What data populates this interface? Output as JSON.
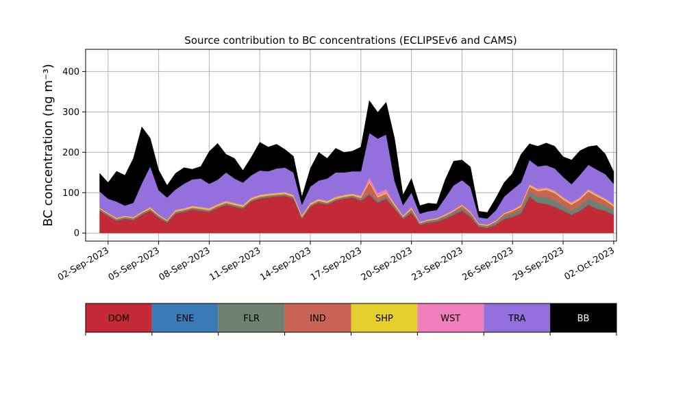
{
  "chart_data": {
    "type": "area",
    "stacked": true,
    "title": "Source contribution to BC concentrations (ECLIPSEv6 and CAMS)",
    "ylabel": "BC concentration (ng m⁻³)",
    "xlabel": "",
    "ylim": [
      -20,
      455
    ],
    "yticks": [
      0,
      100,
      200,
      300,
      400
    ],
    "xlim": [
      "2023-08-31T16:00",
      "2023-10-02T04:00"
    ],
    "xticks": [
      "02-Sep-2023",
      "05-Sep-2023",
      "08-Sep-2023",
      "11-Sep-2023",
      "14-Sep-2023",
      "17-Sep-2023",
      "20-Sep-2023",
      "23-Sep-2023",
      "26-Sep-2023",
      "29-Sep-2023",
      "02-Oct-2023"
    ],
    "grid": true,
    "legend_placement": "below",
    "x": [
      "2023-09-01T12:00",
      "2023-09-02T00:00",
      "2023-09-02T12:00",
      "2023-09-03T00:00",
      "2023-09-03T12:00",
      "2023-09-04T00:00",
      "2023-09-04T12:00",
      "2023-09-05T00:00",
      "2023-09-05T12:00",
      "2023-09-06T00:00",
      "2023-09-06T12:00",
      "2023-09-07T00:00",
      "2023-09-07T12:00",
      "2023-09-08T00:00",
      "2023-09-08T12:00",
      "2023-09-09T00:00",
      "2023-09-09T12:00",
      "2023-09-10T00:00",
      "2023-09-10T12:00",
      "2023-09-11T00:00",
      "2023-09-11T12:00",
      "2023-09-12T00:00",
      "2023-09-12T12:00",
      "2023-09-13T00:00",
      "2023-09-13T12:00",
      "2023-09-14T00:00",
      "2023-09-14T12:00",
      "2023-09-15T00:00",
      "2023-09-15T12:00",
      "2023-09-16T00:00",
      "2023-09-16T12:00",
      "2023-09-17T00:00",
      "2023-09-17T12:00",
      "2023-09-18T00:00",
      "2023-09-18T12:00",
      "2023-09-19T00:00",
      "2023-09-19T12:00",
      "2023-09-20T00:00",
      "2023-09-20T12:00",
      "2023-09-21T00:00",
      "2023-09-21T12:00",
      "2023-09-22T00:00",
      "2023-09-22T12:00",
      "2023-09-23T00:00",
      "2023-09-23T12:00",
      "2023-09-24T00:00",
      "2023-09-24T12:00",
      "2023-09-25T00:00",
      "2023-09-25T12:00",
      "2023-09-26T00:00",
      "2023-09-26T12:00",
      "2023-09-27T00:00",
      "2023-09-27T12:00",
      "2023-09-28T00:00",
      "2023-09-28T12:00",
      "2023-09-29T00:00",
      "2023-09-29T12:00",
      "2023-09-30T00:00",
      "2023-09-30T12:00",
      "2023-10-01T00:00",
      "2023-10-01T12:00",
      "2023-10-02T00:00"
    ],
    "series": [
      {
        "name": "DOM",
        "color": "#c42a35",
        "values": [
          55,
          42,
          30,
          35,
          32,
          45,
          55,
          38,
          25,
          48,
          52,
          58,
          55,
          52,
          62,
          70,
          65,
          60,
          78,
          85,
          88,
          90,
          92,
          85,
          35,
          65,
          75,
          70,
          80,
          85,
          88,
          80,
          95,
          75,
          85,
          60,
          35,
          50,
          20,
          25,
          28,
          35,
          45,
          55,
          40,
          15,
          12,
          20,
          35,
          40,
          48,
          90,
          75,
          72,
          65,
          55,
          45,
          55,
          70,
          60,
          55,
          45
        ]
      },
      {
        "name": "ENE",
        "color": "#3a7ab5",
        "values": [
          1,
          1,
          1,
          1,
          1,
          1,
          1,
          1,
          1,
          1,
          1,
          1,
          1,
          1,
          1,
          1,
          1,
          1,
          1,
          1,
          1,
          1,
          1,
          1,
          1,
          1,
          1,
          1,
          1,
          1,
          1,
          1,
          1,
          1,
          1,
          1,
          1,
          1,
          1,
          1,
          1,
          1,
          1,
          1,
          1,
          1,
          1,
          1,
          1,
          1,
          1,
          1,
          1,
          1,
          1,
          1,
          1,
          1,
          1,
          1,
          1,
          1
        ]
      },
      {
        "name": "FLR",
        "color": "#6e8070",
        "values": [
          2,
          2,
          2,
          2,
          2,
          2,
          2,
          2,
          2,
          2,
          2,
          2,
          2,
          2,
          2,
          2,
          2,
          2,
          2,
          2,
          2,
          2,
          2,
          2,
          2,
          2,
          2,
          2,
          2,
          2,
          2,
          3,
          4,
          4,
          4,
          3,
          2,
          4,
          2,
          3,
          3,
          4,
          5,
          6,
          5,
          3,
          3,
          4,
          6,
          7,
          8,
          12,
          14,
          16,
          15,
          12,
          10,
          12,
          14,
          14,
          12,
          10
        ]
      },
      {
        "name": "IND",
        "color": "#c86356",
        "values": [
          2,
          2,
          2,
          2,
          2,
          2,
          2,
          2,
          2,
          2,
          2,
          2,
          2,
          2,
          2,
          2,
          2,
          2,
          2,
          2,
          2,
          2,
          2,
          2,
          2,
          2,
          2,
          2,
          2,
          2,
          2,
          3,
          25,
          8,
          8,
          4,
          2,
          4,
          2,
          2,
          2,
          3,
          3,
          5,
          4,
          2,
          2,
          3,
          5,
          6,
          8,
          12,
          14,
          18,
          18,
          15,
          14,
          15,
          18,
          16,
          12,
          10
        ]
      },
      {
        "name": "SHP",
        "color": "#e4cf2d",
        "values": [
          2,
          2,
          2,
          2,
          2,
          2,
          3,
          2,
          2,
          3,
          3,
          3,
          3,
          3,
          3,
          3,
          3,
          3,
          3,
          3,
          3,
          3,
          3,
          3,
          3,
          3,
          3,
          3,
          3,
          3,
          3,
          3,
          3,
          3,
          3,
          3,
          2,
          3,
          2,
          2,
          2,
          2,
          2,
          2,
          2,
          2,
          2,
          2,
          2,
          2,
          3,
          3,
          3,
          3,
          3,
          3,
          3,
          3,
          3,
          3,
          3,
          3
        ]
      },
      {
        "name": "WST",
        "color": "#f17fbf",
        "values": [
          1,
          1,
          1,
          1,
          1,
          1,
          2,
          1,
          1,
          2,
          2,
          2,
          2,
          2,
          2,
          2,
          2,
          2,
          2,
          2,
          2,
          2,
          2,
          2,
          2,
          2,
          2,
          2,
          2,
          2,
          2,
          3,
          10,
          8,
          8,
          3,
          2,
          3,
          1,
          1,
          1,
          2,
          2,
          2,
          2,
          1,
          1,
          1,
          1,
          2,
          2,
          3,
          3,
          3,
          3,
          3,
          3,
          3,
          3,
          3,
          3,
          3
        ]
      },
      {
        "name": "TRA",
        "color": "#9370db",
        "values": [
          40,
          35,
          40,
          25,
          35,
          70,
          100,
          60,
          55,
          50,
          60,
          65,
          70,
          60,
          60,
          70,
          60,
          55,
          55,
          60,
          55,
          60,
          60,
          55,
          25,
          40,
          45,
          55,
          60,
          55,
          55,
          60,
          110,
          135,
          135,
          55,
          25,
          35,
          20,
          20,
          20,
          40,
          60,
          60,
          60,
          15,
          15,
          25,
          40,
          50,
          55,
          60,
          55,
          55,
          55,
          50,
          45,
          55,
          60,
          60,
          60,
          50
        ]
      },
      {
        "name": "BB",
        "color": "#000000",
        "values": [
          45,
          40,
          75,
          75,
          110,
          140,
          70,
          50,
          30,
          40,
          40,
          25,
          30,
          80,
          90,
          45,
          50,
          30,
          45,
          70,
          60,
          60,
          45,
          40,
          20,
          45,
          70,
          50,
          60,
          50,
          50,
          60,
          80,
          65,
          80,
          105,
          25,
          35,
          20,
          20,
          15,
          45,
          60,
          50,
          50,
          15,
          15,
          30,
          35,
          40,
          70,
          40,
          50,
          55,
          55,
          50,
          60,
          60,
          45,
          60,
          50,
          30
        ]
      }
    ],
    "legend": [
      {
        "label": "DOM",
        "color": "#c42a35",
        "text_color": "#000000"
      },
      {
        "label": "ENE",
        "color": "#3a7ab5",
        "text_color": "#000000"
      },
      {
        "label": "FLR",
        "color": "#6e8070",
        "text_color": "#000000"
      },
      {
        "label": "IND",
        "color": "#c86356",
        "text_color": "#000000"
      },
      {
        "label": "SHP",
        "color": "#e4cf2d",
        "text_color": "#000000"
      },
      {
        "label": "WST",
        "color": "#f17fbf",
        "text_color": "#000000"
      },
      {
        "label": "TRA",
        "color": "#9370db",
        "text_color": "#000000"
      },
      {
        "label": "BB",
        "color": "#000000",
        "text_color": "#ffffff"
      }
    ]
  }
}
